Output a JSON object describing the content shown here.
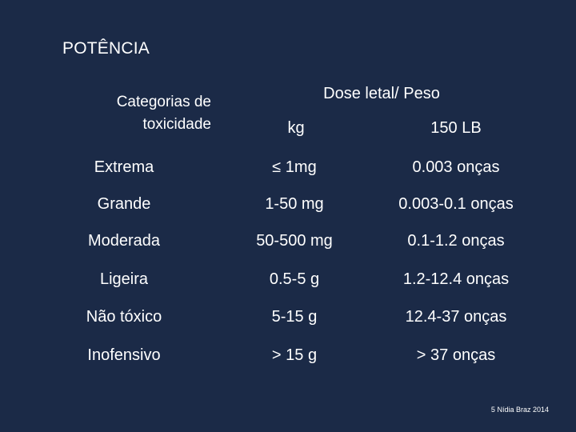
{
  "title": "POTÊNCIA",
  "table": {
    "category_header": [
      "Categorias de",
      "toxicidade"
    ],
    "dose_header": "Dose letal/ Peso",
    "subheaders": [
      "kg",
      "150 LB"
    ],
    "rows": [
      {
        "category": "Extrema",
        "kg": "≤ 1mg",
        "lb": "0.003 onças"
      },
      {
        "category": "Grande",
        "kg": "1-50 mg",
        "lb": "0.003-0.1 onças"
      },
      {
        "category": "Moderada",
        "kg": "50-500 mg",
        "lb": "0.1-1.2 onças"
      },
      {
        "category": "Ligeira",
        "kg": "0.5-5 g",
        "lb": "1.2-12.4 onças"
      },
      {
        "category": "Não tóxico",
        "kg": "5-15 g",
        "lb": "12.4-37 onças"
      },
      {
        "category": "Inofensivo",
        "kg": "> 15 g",
        "lb": "> 37 onças"
      }
    ]
  },
  "footer": {
    "page_number": "5",
    "author": "Nídia Braz 2014"
  }
}
